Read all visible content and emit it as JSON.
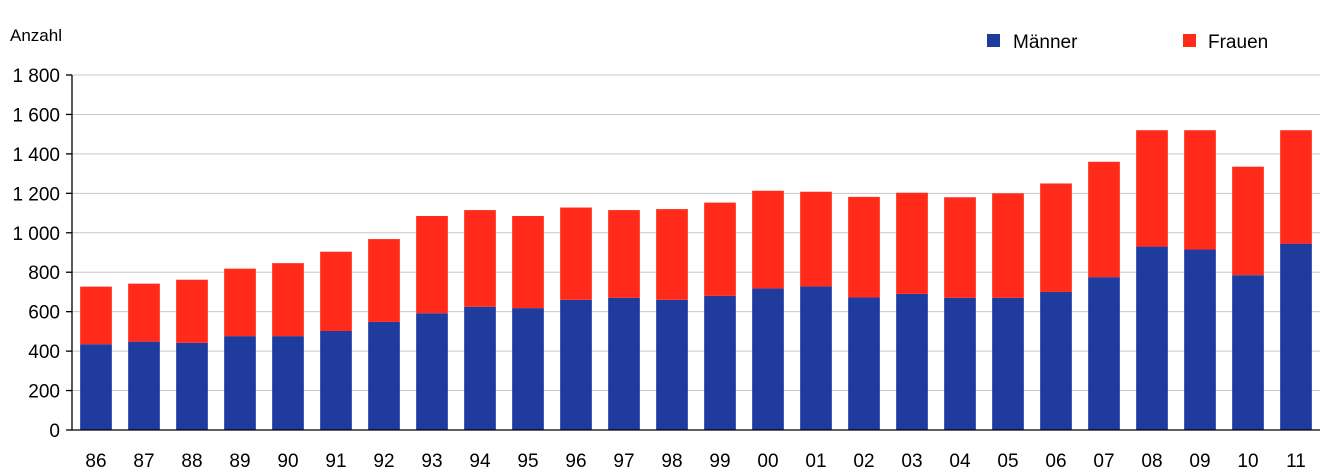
{
  "chart_data": {
    "type": "bar",
    "stacked": true,
    "ylabel": "Anzahl",
    "ylim": [
      0,
      1800
    ],
    "ytick_values": [
      0,
      200,
      400,
      600,
      800,
      1000,
      1200,
      1400,
      1600,
      1800
    ],
    "ytick_labels": [
      "0",
      "200",
      "400",
      "600",
      "800",
      "1 000",
      "1 200",
      "1 400",
      "1 600",
      "1 800"
    ],
    "grid": true,
    "legend_position": "top-right",
    "categories": [
      "86",
      "87",
      "88",
      "89",
      "90",
      "91",
      "92",
      "93",
      "94",
      "95",
      "96",
      "97",
      "98",
      "99",
      "00",
      "01",
      "02",
      "03",
      "04",
      "05",
      "06",
      "07",
      "08",
      "09",
      "10",
      "11"
    ],
    "series": [
      {
        "name": "Männer",
        "color": "#1f3b9e",
        "values": [
          435,
          448,
          442,
          476,
          476,
          502,
          548,
          592,
          625,
          618,
          660,
          670,
          660,
          680,
          718,
          728,
          672,
          690,
          670,
          670,
          700,
          775,
          930,
          915,
          785,
          945
        ]
      },
      {
        "name": "Frauen",
        "color": "#ff2a1a",
        "values": [
          292,
          294,
          320,
          342,
          370,
          402,
          420,
          493,
          490,
          467,
          468,
          445,
          460,
          473,
          495,
          480,
          510,
          513,
          510,
          530,
          550,
          585,
          590,
          605,
          550,
          575
        ]
      }
    ]
  }
}
